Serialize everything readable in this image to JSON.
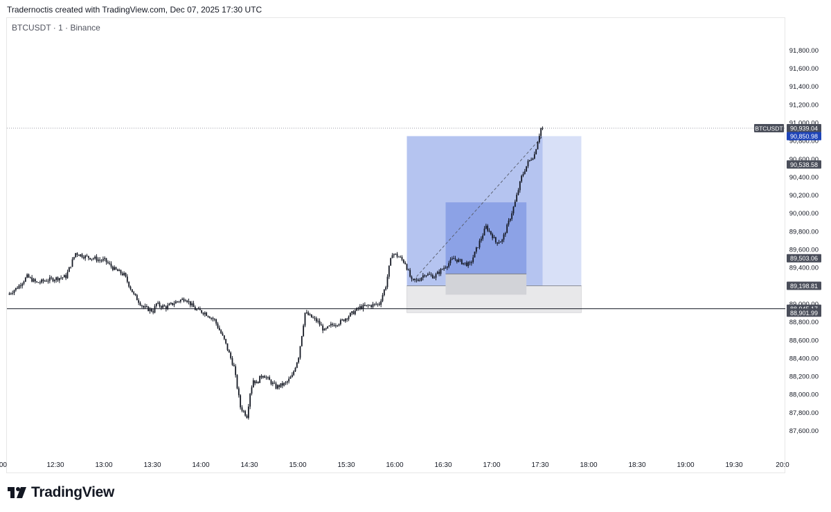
{
  "header": {
    "attribution": "Tradernoctis created with TradingView.com, Dec 07, 2025 17:30 UTC"
  },
  "symbol_line": "BTCUSDT · 1 · Binance",
  "branding": {
    "logo_text": "TradingView"
  },
  "colors": {
    "candle": "#131722",
    "profit_zone": "#b5c4f0",
    "profit_zone_projected": "#d8e0f7",
    "inner_zone": "#8ca2e6",
    "loss_zone": "#e8e8ea",
    "badge_grey": "#4a4e5a",
    "badge_blue": "#1e44b8",
    "hline": "#131722"
  },
  "chart_data": {
    "type": "candlestick",
    "title": "BTCUSDT · 1 · Binance",
    "x_axis": {
      "ticks": [
        ":00",
        "12:30",
        "13:00",
        "13:30",
        "14:00",
        "14:30",
        "15:00",
        "15:30",
        "16:00",
        "16:30",
        "17:00",
        "17:30",
        "18:00",
        "18:30",
        "19:00",
        "19:30",
        "20:0"
      ]
    },
    "y_axis": {
      "position": "right",
      "range": [
        87466,
        92002
      ],
      "ticks": [
        "87,600.00",
        "87,800.00",
        "88,000.00",
        "88,200.00",
        "88,400.00",
        "88,600.00",
        "88,800.00",
        "89,000.00",
        "89,200.00",
        "89,400.00",
        "89,600.00",
        "89,800.00",
        "90,000.00",
        "90,200.00",
        "90,400.00",
        "90,600.00",
        "90,800.00",
        "91,000.00",
        "91,200.00",
        "91,400.00",
        "91,600.00",
        "91,800.00"
      ]
    },
    "price_path": {
      "time": [
        "12:00",
        "12:06",
        "12:12",
        "12:18",
        "12:24",
        "12:30",
        "12:36",
        "12:42",
        "12:48",
        "12:54",
        "12:57",
        "13:00",
        "13:06",
        "13:12",
        "13:18",
        "13:24",
        "13:30",
        "13:32",
        "13:34",
        "13:38",
        "13:44",
        "13:50",
        "13:56",
        "14:02",
        "14:08",
        "14:14",
        "14:20",
        "14:24",
        "14:28",
        "14:30",
        "14:32",
        "14:34",
        "14:36",
        "14:38",
        "14:42",
        "14:46",
        "14:52",
        "14:56",
        "15:00",
        "15:04",
        "15:08",
        "15:12",
        "15:16",
        "15:20",
        "15:26",
        "15:32",
        "15:38",
        "15:44",
        "15:50",
        "15:54",
        "15:56",
        "15:58",
        "16:02",
        "16:06",
        "16:10",
        "16:14",
        "16:18",
        "16:24",
        "16:30",
        "16:36",
        "16:42",
        "16:46",
        "16:50",
        "16:56",
        "17:00",
        "17:02",
        "17:06",
        "17:10",
        "17:14",
        "17:18",
        "17:22",
        "17:26",
        "17:28",
        "17:30"
      ],
      "price": [
        89100,
        89180,
        89300,
        89230,
        89260,
        89280,
        89300,
        89560,
        89520,
        89500,
        89480,
        89480,
        89380,
        89320,
        89100,
        88960,
        88920,
        89000,
        88980,
        88960,
        89020,
        89060,
        88940,
        88900,
        88820,
        88600,
        88300,
        87860,
        87760,
        88020,
        88160,
        88120,
        88180,
        88220,
        88150,
        88080,
        88120,
        88200,
        88420,
        88900,
        88850,
        88800,
        88700,
        88760,
        88800,
        88880,
        88960,
        88980,
        89000,
        89200,
        89400,
        89560,
        89520,
        89450,
        89250,
        89260,
        89330,
        89300,
        89400,
        89500,
        89450,
        89430,
        89600,
        89850,
        89750,
        89680,
        89700,
        89900,
        90120,
        90400,
        90560,
        90650,
        90800,
        90939.04
      ]
    },
    "price_labels": [
      {
        "label": "BTCUSDT",
        "value": "90,939.04",
        "price": 90939.04
      },
      {
        "value": "90,850.98",
        "price": 90850.98
      },
      {
        "value": "90,538.58",
        "price": 90538.58
      },
      {
        "value": "89,503.06",
        "price": 89503.06
      },
      {
        "value": "89,198.81",
        "price": 89198.81
      },
      {
        "value": "88,945.17",
        "price": 88945.17
      },
      {
        "value": "88,901.99",
        "price": 88901.99
      }
    ],
    "horizontal_line_price": 88945.17,
    "long_position": {
      "start_time": "16:06",
      "end_time": "17:54",
      "projected_from_time": "17:30",
      "entry": 89198.81,
      "take_profit": 90850.98,
      "stop": 88901.99
    },
    "inner_position": {
      "start_time": "16:30",
      "end_time": "17:20",
      "entry": 89330,
      "take_profit": 90120,
      "stop": 89100
    },
    "grid": false,
    "legend": "none"
  }
}
